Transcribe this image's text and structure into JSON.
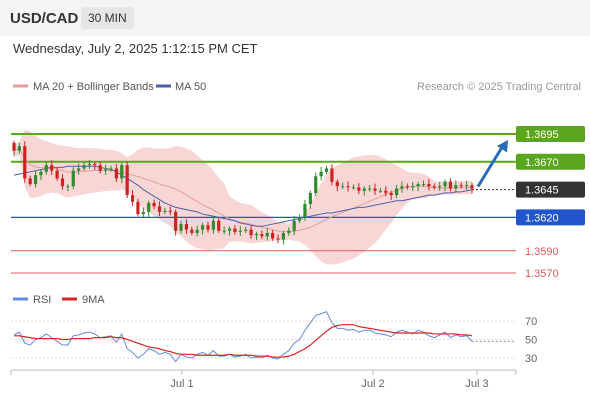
{
  "header": {
    "pair": "USD/CAD",
    "interval": "30 MIN",
    "datetime": "Wednesday, July 2, 2025 1:12:15 PM CET"
  },
  "legend": {
    "ma20_label": "MA 20 + Bollinger Bands",
    "ma50_label": "MA 50",
    "credit": "Research © 2025 Trading Central"
  },
  "rsi_legend": {
    "rsi_label": "RSI",
    "ma_label": "9MA"
  },
  "colors": {
    "candle_up": "#2e8b2e",
    "candle_down": "#cc2222",
    "bollinger": "#f7c5c5",
    "ma20": "#e79a9a",
    "ma50": "#4a5fa8",
    "resistance": "#5aa61e",
    "support": "#2255cc",
    "target_low": "#e05c5c",
    "current": "#333333",
    "arrow": "#2a6bb8",
    "rsi_line": "#6688dd",
    "rsi_ma": "#dd2222"
  },
  "chart_data": {
    "type": "candlestick",
    "ylim": [
      1.356,
      1.3705
    ],
    "levels": [
      {
        "label": "1.3695",
        "value": 1.3695,
        "kind": "resistance"
      },
      {
        "label": "1.3670",
        "value": 1.367,
        "kind": "resistance"
      },
      {
        "label": "1.3645",
        "value": 1.3645,
        "kind": "current"
      },
      {
        "label": "1.3620",
        "value": 1.362,
        "kind": "support"
      },
      {
        "label": "1.3590",
        "value": 1.359,
        "kind": "target"
      },
      {
        "label": "1.3570",
        "value": 1.357,
        "kind": "target"
      }
    ],
    "x_ticks": [
      "Jul 1",
      "Jul 2",
      "Jul 3"
    ],
    "close": [
      1.368,
      1.3684,
      1.3655,
      1.365,
      1.3658,
      1.3661,
      1.3667,
      1.3662,
      1.3655,
      1.3648,
      1.3648,
      1.3662,
      1.3664,
      1.3667,
      1.3668,
      1.3667,
      1.3662,
      1.3663,
      1.3664,
      1.3655,
      1.3667,
      1.364,
      1.3634,
      1.3623,
      1.3625,
      1.3633,
      1.363,
      1.3625,
      1.3626,
      1.3625,
      1.3608,
      1.3614,
      1.3609,
      1.3606,
      1.3609,
      1.3613,
      1.3609,
      1.3617,
      1.3608,
      1.3608,
      1.361,
      1.3607,
      1.3608,
      1.3609,
      1.3604,
      1.3605,
      1.3603,
      1.3606,
      1.3601,
      1.36,
      1.3606,
      1.3608,
      1.3617,
      1.362,
      1.3632,
      1.3642,
      1.3657,
      1.3661,
      1.3664,
      1.3652,
      1.3648,
      1.3648,
      1.3647,
      1.3647,
      1.3644,
      1.3646,
      1.3646,
      1.3644,
      1.3644,
      1.3642,
      1.364,
      1.3646,
      1.3648,
      1.3647,
      1.3648,
      1.365,
      1.365,
      1.3648,
      1.3647,
      1.3648,
      1.3652,
      1.3646,
      1.3649,
      1.3648,
      1.3649,
      1.3646
    ],
    "ma50": [
      1.3658,
      1.3659,
      1.366,
      1.3661,
      1.3662,
      1.3663,
      1.3664,
      1.3665,
      1.3665,
      1.3665,
      1.3666,
      1.3666,
      1.3666,
      1.3666,
      1.3666,
      1.3666,
      1.3665,
      1.3664,
      1.3663,
      1.3661,
      1.3658,
      1.3655,
      1.3652,
      1.3649,
      1.3645,
      1.3642,
      1.3639,
      1.3636,
      1.3633,
      1.3631,
      1.3629,
      1.3628,
      1.3627,
      1.3626,
      1.3625,
      1.3623,
      1.3622,
      1.3621,
      1.362,
      1.3619,
      1.3618,
      1.3617,
      1.3615,
      1.3614,
      1.3613,
      1.3612,
      1.3612,
      1.3613,
      1.3614,
      1.3615,
      1.3616,
      1.3617,
      1.3618,
      1.3619,
      1.362,
      1.3621,
      1.3622,
      1.3623,
      1.3624,
      1.3624,
      1.3625,
      1.3626,
      1.3627,
      1.3628,
      1.3629,
      1.3629,
      1.363,
      1.3631,
      1.3632,
      1.3633,
      1.3634,
      1.3635,
      1.3635,
      1.3636,
      1.3637,
      1.3638,
      1.3639,
      1.364,
      1.364,
      1.3641,
      1.3642,
      1.3642,
      1.3643,
      1.3643,
      1.3644,
      1.3645
    ],
    "rsi": [
      55,
      58,
      46,
      44,
      50,
      52,
      56,
      52,
      48,
      44,
      44,
      54,
      55,
      57,
      58,
      56,
      52,
      53,
      54,
      47,
      56,
      40,
      36,
      30,
      34,
      40,
      38,
      34,
      36,
      34,
      26,
      34,
      31,
      30,
      34,
      36,
      33,
      38,
      32,
      32,
      34,
      31,
      32,
      34,
      30,
      31,
      30,
      33,
      30,
      29,
      34,
      38,
      46,
      50,
      60,
      68,
      76,
      78,
      80,
      68,
      62,
      62,
      60,
      61,
      58,
      60,
      60,
      57,
      56,
      55,
      53,
      58,
      60,
      58,
      56,
      60,
      58,
      54,
      52,
      55,
      58,
      52,
      55,
      53,
      54,
      48
    ],
    "rsi_ma": [
      54,
      54,
      53,
      52,
      51,
      51,
      51,
      51,
      51,
      50,
      50,
      51,
      51,
      51,
      51,
      52,
      52,
      52,
      53,
      52,
      52,
      50,
      48,
      46,
      44,
      42,
      41,
      40,
      38,
      37,
      35,
      34,
      34,
      34,
      33,
      33,
      33,
      33,
      33,
      33,
      34,
      33,
      33,
      33,
      33,
      32,
      32,
      32,
      31,
      31,
      31,
      32,
      34,
      37,
      40,
      44,
      49,
      54,
      59,
      63,
      65,
      66,
      66,
      66,
      64,
      63,
      62,
      61,
      60,
      59,
      58,
      57,
      57,
      57,
      57,
      57,
      57,
      57,
      56,
      56,
      56,
      56,
      56,
      55,
      55,
      54
    ],
    "rsi_ylim": [
      20,
      85
    ],
    "rsi_ticks": [
      "70",
      "50",
      "30"
    ]
  }
}
